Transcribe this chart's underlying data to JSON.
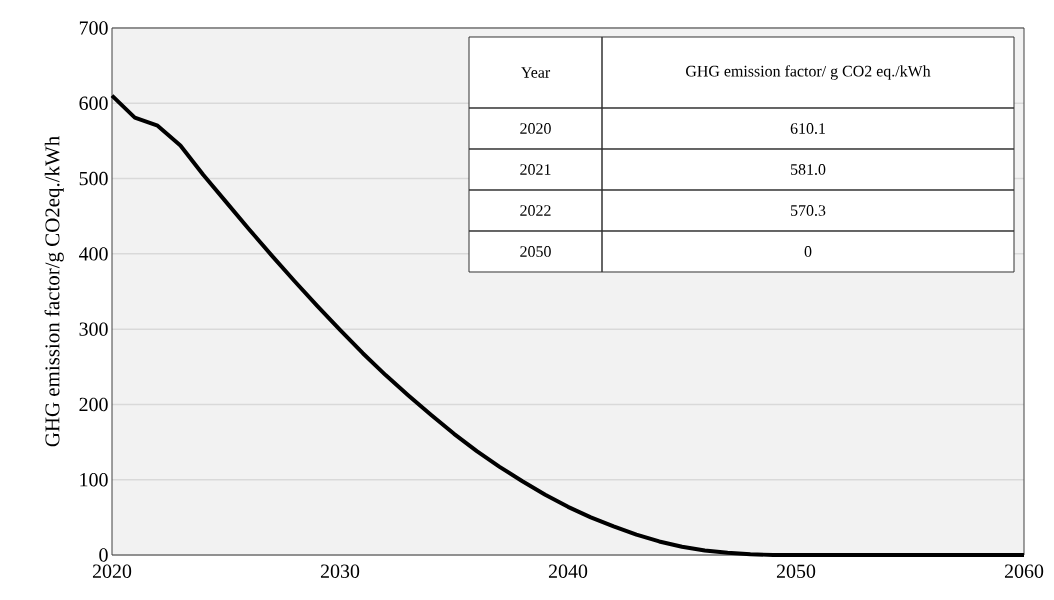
{
  "chart_data": {
    "type": "line",
    "ylabel": "GHG emission factor/g CO2eq./kWh",
    "x": [
      2020,
      2021,
      2022,
      2023,
      2024,
      2025,
      2026,
      2027,
      2028,
      2029,
      2030,
      2031,
      2032,
      2033,
      2034,
      2035,
      2036,
      2037,
      2038,
      2039,
      2040,
      2041,
      2042,
      2043,
      2044,
      2045,
      2046,
      2047,
      2048,
      2049,
      2050,
      2055,
      2060
    ],
    "series": [
      {
        "color": "#000000",
        "values": [
          610.1,
          581.0,
          570.3,
          544,
          505,
          469,
          433,
          398,
          364,
          331,
          299,
          268,
          239,
          212,
          186,
          161,
          138,
          117,
          98,
          80,
          64,
          50,
          38,
          27,
          18,
          11,
          6,
          3,
          1,
          0,
          0,
          0,
          0
        ]
      }
    ],
    "xlim": [
      2020,
      2060
    ],
    "ylim": [
      0,
      700
    ],
    "xticks": [
      2020,
      2030,
      2040,
      2050,
      2060
    ],
    "yticks": [
      0,
      100,
      200,
      300,
      400,
      500,
      600,
      700
    ],
    "grid": "y",
    "marker": "none",
    "line_style": "solid",
    "annotations": [
      "Year",
      "GHG emission factor/ g CO2 eq./kWh",
      "2020",
      "610.1",
      "2021",
      "581.0",
      "2022",
      "570.3",
      "2050",
      "0"
    ]
  }
}
